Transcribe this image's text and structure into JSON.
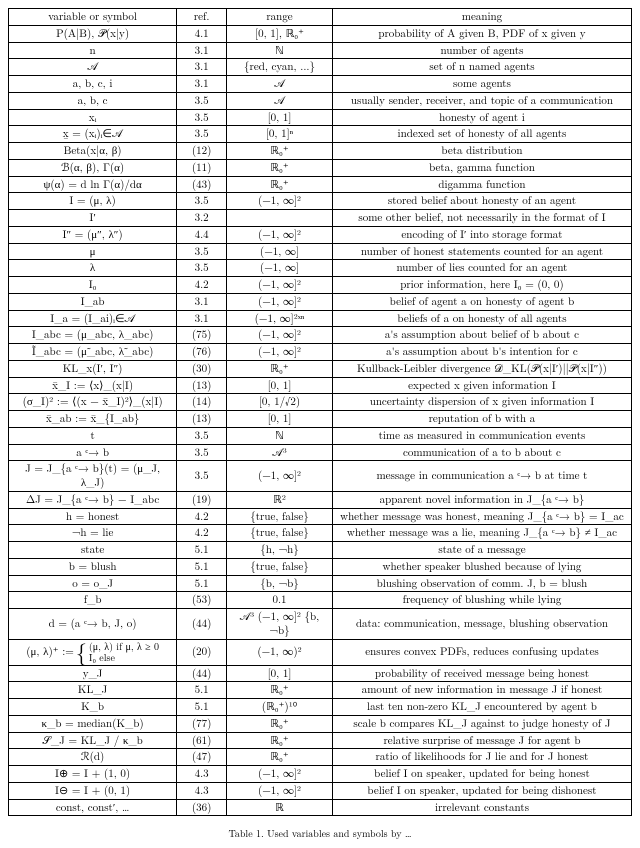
{
  "table": {
    "columns": [
      "variable or symbol",
      "ref.",
      "range",
      "meaning"
    ],
    "col_widths_pct": [
      27,
      8,
      17,
      48
    ],
    "border_color": "#000000",
    "background_color": "#ffffff",
    "font_family": "Computer Modern / Times",
    "font_size_pt": 9,
    "rows": [
      {
        "sym": "P(A|B), 𝒫(x|y)",
        "ref": "4.1",
        "range": "[0, 1], ℝ₀⁺",
        "meaning": "probability of A given B, PDF of x given y"
      },
      {
        "sym": "n",
        "ref": "3.1",
        "range": "ℕ",
        "meaning": "number of agents"
      },
      {
        "sym": "𝒜",
        "ref": "3.1",
        "range": "{red, cyan, ...}",
        "meaning": "set of n named agents"
      },
      {
        "sym": "a, b, c, i",
        "ref": "3.1",
        "range": "𝒜",
        "meaning": "some agents"
      },
      {
        "sym": "a, b, c",
        "ref": "3.5",
        "range": "𝒜",
        "meaning": "usually sender, receiver, and topic of a communication"
      },
      {
        "sym": "xᵢ",
        "ref": "3.5",
        "range": "[0, 1]",
        "meaning": "honesty of agent i"
      },
      {
        "sym": "x̲ = (xᵢ)ᵢ∈𝒜",
        "ref": "3.5",
        "range": "[0, 1]ⁿ",
        "meaning": "indexed set of honesty of all agents"
      },
      {
        "sym": "Beta(x|α, β)",
        "ref": "(12)",
        "range": "ℝ₀⁺",
        "meaning": "beta distribution"
      },
      {
        "sym": "ℬ(α, β), Γ(α)",
        "ref": "(11)",
        "range": "ℝ₀⁺",
        "meaning": "beta, gamma function"
      },
      {
        "sym": "ψ(α) = d ln Γ(α)/dα",
        "ref": "(43)",
        "range": "ℝ₀⁺",
        "meaning": "digamma function"
      },
      {
        "sym": "I = (μ, λ)",
        "ref": "3.5",
        "range": "(−1, ∞]²",
        "meaning": "stored belief about honesty of an agent"
      },
      {
        "sym": "I′",
        "ref": "3.2",
        "range": "",
        "meaning": "some other belief, not necessarily in the format of I"
      },
      {
        "sym": "I″ = (μ″, λ″)",
        "ref": "4.4",
        "range": "(−1, ∞]²",
        "meaning": "encoding of I′ into storage format"
      },
      {
        "sym": "μ",
        "ref": "3.5",
        "range": "(−1, ∞]",
        "meaning": "number of honest statements counted for an agent"
      },
      {
        "sym": "λ",
        "ref": "3.5",
        "range": "(−1, ∞]",
        "meaning": "number of lies counted for an agent"
      },
      {
        "sym": "I₀",
        "ref": "4.2",
        "range": "(−1, ∞]²",
        "meaning": "prior information, here I₀ = (0, 0)"
      },
      {
        "sym": "I_ab",
        "ref": "3.1",
        "range": "(−1, ∞]²",
        "meaning": "belief of agent a on honesty of agent b"
      },
      {
        "sym": "I_a = (I_ai)ᵢ∈𝒜",
        "ref": "3.1",
        "range": "(−1, ∞]²ˣⁿ",
        "meaning": "beliefs of a on honesty of all agents"
      },
      {
        "sym": "I_abc = (μ_abc, λ_abc)",
        "ref": "(75)",
        "range": "(−1, ∞]²",
        "meaning": "a's assumption about belief of b about c"
      },
      {
        "sym": "Ĩ_abc = (μ̃_abc, λ̃_abc)",
        "ref": "(76)",
        "range": "(−1, ∞]²",
        "meaning": "a's assumption about b's intention for c"
      },
      {
        "sym": "KL_x(I′, I″)",
        "ref": "(30)",
        "range": "ℝ₀⁺",
        "meaning": "Kullback-Leibler divergence 𝒟_KL(𝒫(x|I′)||𝒫(x|I″))"
      },
      {
        "sym": "x̄_I := ⟨x⟩_(x|I)",
        "ref": "(13)",
        "range": "[0, 1]",
        "meaning": "expected x given information I"
      },
      {
        "sym": "(σ_I)² := ⟨(x − x̄_I)²⟩_(x|I)",
        "ref": "(14)",
        "range": "[0, 1/√2)",
        "meaning": "uncertainty dispersion of x given information I"
      },
      {
        "sym": "x̄_ab := x̄_{I_ab}",
        "ref": "(13)",
        "range": "[0, 1]",
        "meaning": "reputation of b with a"
      },
      {
        "sym": "t",
        "ref": "3.5",
        "range": "ℕ",
        "meaning": "time as measured in communication events"
      },
      {
        "sym": "a ᶜ→ b",
        "ref": "3.5",
        "range": "𝒜³",
        "meaning": "communication of a to b about c"
      },
      {
        "sym": "J = J_{a ᶜ→ b}(t) = (μ_J, λ_J)",
        "ref": "3.5",
        "range": "(−1, ∞]²",
        "meaning": "message in communication a ᶜ→ b at time t"
      },
      {
        "sym": "ΔJ = J_{a ᶜ→ b} − I_abc",
        "ref": "(19)",
        "range": "ℝ²",
        "meaning": "apparent novel information in J_{a ᶜ→ b}"
      },
      {
        "sym": "h = honest",
        "ref": "4.2",
        "range": "{true, false}",
        "meaning": "whether message was honest, meaning J_{a ᶜ→ b} = I_ac"
      },
      {
        "sym": "¬h = lie",
        "ref": "4.2",
        "range": "{true, false}",
        "meaning": "whether message was a lie, meaning J_{a ᶜ→ b} ≠ I_ac"
      },
      {
        "sym": "state",
        "ref": "5.1",
        "range": "{h, ¬h}",
        "meaning": "state of a message"
      },
      {
        "sym": "b = blush",
        "ref": "5.1",
        "range": "{true, false}",
        "meaning": "whether speaker blushed because of lying"
      },
      {
        "sym": "o = o_J",
        "ref": "5.1",
        "range": "{b, ¬b}",
        "meaning": "blushing observation of comm. J, b = blush"
      },
      {
        "sym": "f_b",
        "ref": "(53)",
        "range": "0.1",
        "meaning": "frequency of blushing while lying"
      },
      {
        "sym": "d = (a ᶜ→ b, J, o)",
        "ref": "(44)",
        "range": "𝒜³ (−1, ∞]² {b, ¬b}",
        "meaning": "data: communication, message, blushing observation"
      },
      {
        "sym": "__PIECEWISE__",
        "ref": "(20)",
        "range": "(−1, ∞)²",
        "meaning": "ensures convex PDFs, reduces confusing updates"
      },
      {
        "sym": "y_J",
        "ref": "(44)",
        "range": "[0, 1]",
        "meaning": "probability of received message being honest"
      },
      {
        "sym": "KL_J",
        "ref": "5.1",
        "range": "ℝ₀⁺",
        "meaning": "amount of new information in message J if honest"
      },
      {
        "sym": "K_b",
        "ref": "5.1",
        "range": "(ℝ₀⁺)¹⁰",
        "meaning": "last ten non-zero KL_J encountered by agent b"
      },
      {
        "sym": "κ_b = median(K_b)",
        "ref": "(77)",
        "range": "ℝ₀⁺",
        "meaning": "scale b compares KL_J against to judge honesty of J"
      },
      {
        "sym": "𝒮_J = KL_J / κ_b",
        "ref": "(61)",
        "range": "ℝ₀⁺",
        "meaning": "relative surprise of message J for agent b"
      },
      {
        "sym": "ℛ(d)",
        "ref": "(47)",
        "range": "ℝ₀⁺",
        "meaning": "ratio of likelihoods for J lie and for J honest"
      },
      {
        "sym": "I⊕ = I + (1, 0)",
        "ref": "4.3",
        "range": "(−1, ∞]²",
        "meaning": "belief I on speaker, updated for being honest"
      },
      {
        "sym": "I⊖ = I + (0, 1)",
        "ref": "4.3",
        "range": "(−1, ∞]²",
        "meaning": "belief I on speaker, updated for being dishonest"
      },
      {
        "sym": "const, const′, …",
        "ref": "(36)",
        "range": "ℝ",
        "meaning": "irrelevant constants"
      }
    ],
    "piecewise_row_index": 35,
    "piecewise": {
      "lhs": "(μ, λ)⁺ :=",
      "case1": "(μ, λ)   if μ, λ ≥ 0",
      "case2": "I₀        else"
    }
  },
  "caption": "Table 1. Used variables and symbols by …"
}
